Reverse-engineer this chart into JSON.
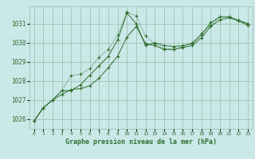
{
  "title": "Graphe pression niveau de la mer (hPa)",
  "bg_color": "#cbe8e8",
  "grid_color": "#99bbaa",
  "line_color": "#2d6e2d",
  "x_labels": [
    "0",
    "1",
    "2",
    "3",
    "4",
    "5",
    "6",
    "7",
    "8",
    "9",
    "10",
    "11",
    "12",
    "13",
    "14",
    "15",
    "16",
    "17",
    "18",
    "19",
    "20",
    "21",
    "22",
    "23"
  ],
  "ylim": [
    1025.5,
    1031.9
  ],
  "yticks": [
    1026,
    1027,
    1028,
    1029,
    1030,
    1031
  ],
  "series1": [
    1025.9,
    1026.6,
    1027.0,
    1027.5,
    1027.5,
    1027.8,
    1028.3,
    1028.8,
    1029.3,
    1030.15,
    1031.55,
    1031.0,
    1029.85,
    1030.0,
    1029.85,
    1029.8,
    1029.85,
    1029.95,
    1030.4,
    1031.05,
    1031.35,
    1031.35,
    1031.15,
    1031.0
  ],
  "series2": [
    1025.9,
    1026.6,
    1027.0,
    1027.5,
    1028.3,
    1028.35,
    1028.65,
    1029.25,
    1029.65,
    1030.4,
    1031.6,
    1031.4,
    1030.35,
    1029.95,
    1029.7,
    1029.65,
    1029.8,
    1030.0,
    1030.5,
    1030.9,
    1031.35,
    1031.35,
    1031.2,
    1031.0
  ],
  "series3": [
    1025.9,
    1026.6,
    1027.0,
    1027.3,
    1027.55,
    1027.6,
    1027.75,
    1028.15,
    1028.7,
    1029.3,
    1030.3,
    1030.85,
    1029.95,
    1029.85,
    1029.65,
    1029.65,
    1029.75,
    1029.85,
    1030.25,
    1030.85,
    1031.2,
    1031.3,
    1031.15,
    1030.9
  ]
}
